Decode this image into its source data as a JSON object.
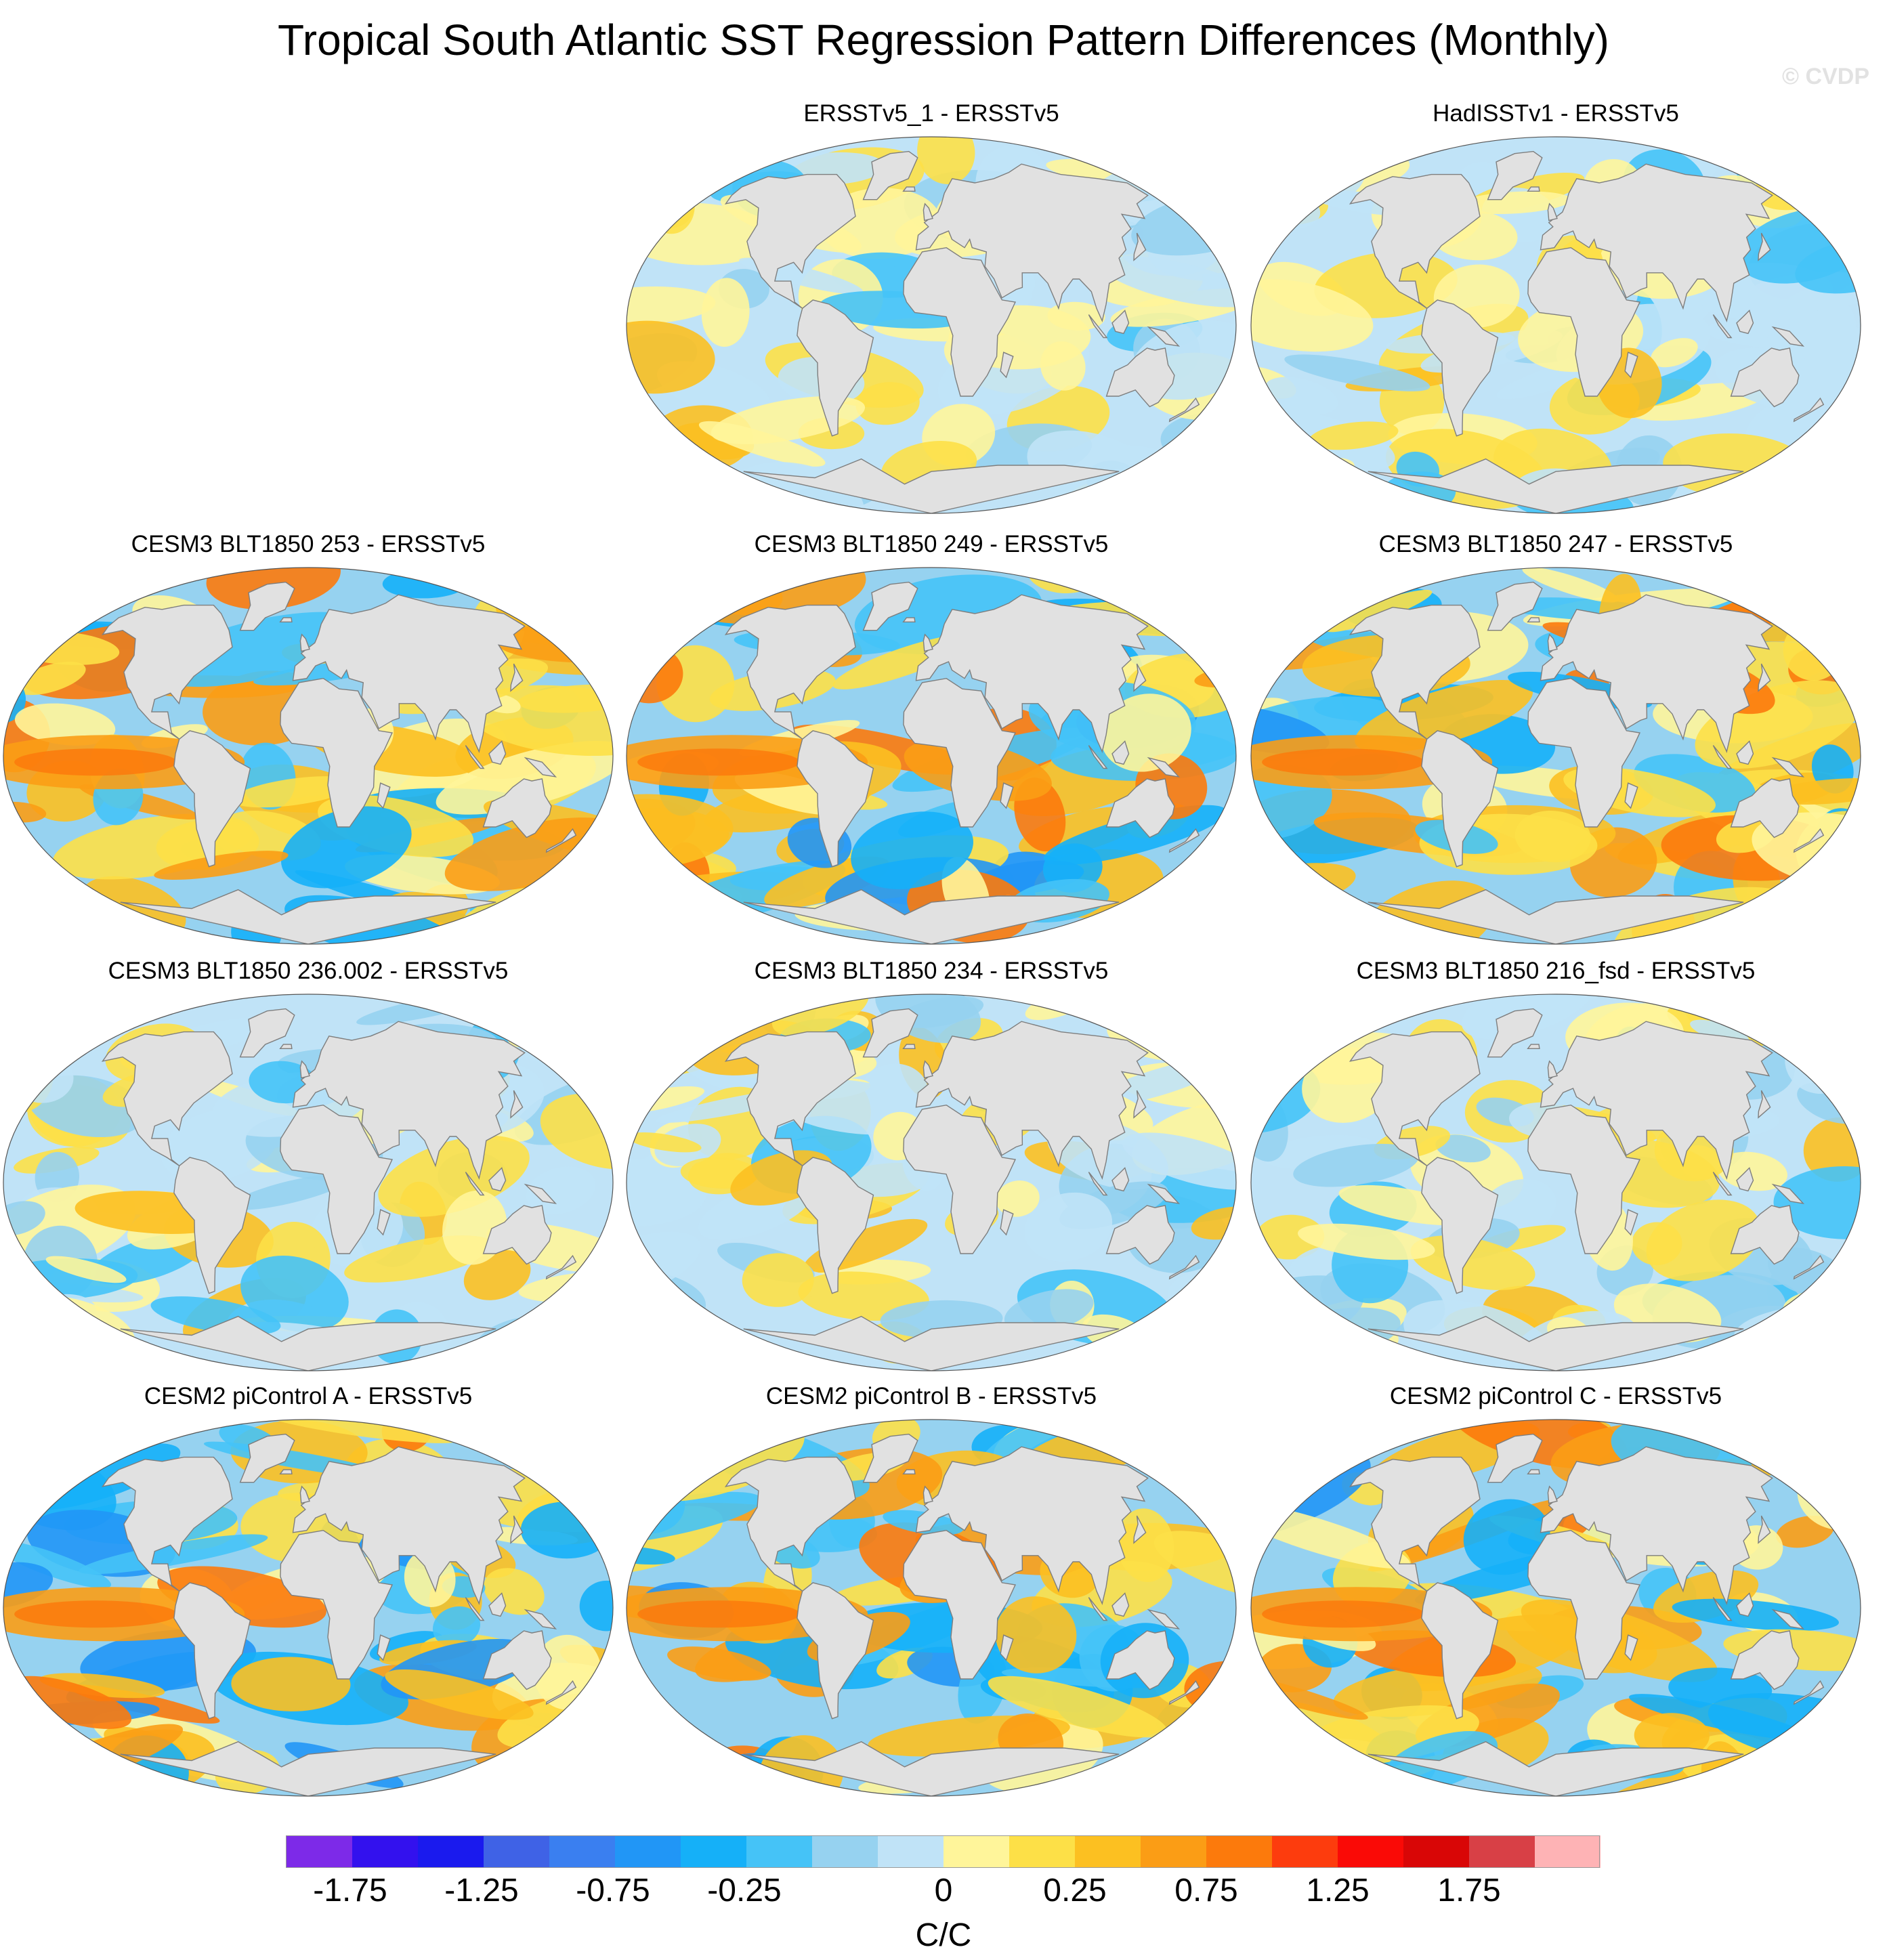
{
  "title": "Tropical South Atlantic SST Regression Pattern Differences (Monthly)",
  "watermark": "© CVDP",
  "panels": [
    {
      "title": "ERSSTv5_1 - ERSSTv5",
      "style": "light",
      "seed": 1
    },
    {
      "title": "HadISSTv1 - ERSSTv5",
      "style": "light",
      "seed": 2
    },
    {
      "title": "CESM3 BLT1850 253 - ERSSTv5",
      "style": "strong",
      "seed": 3
    },
    {
      "title": "CESM3 BLT1850 249 - ERSSTv5",
      "style": "strong",
      "seed": 4
    },
    {
      "title": "CESM3 BLT1850 247 - ERSSTv5",
      "style": "strong",
      "seed": 5
    },
    {
      "title": "CESM3 BLT1850 236.002 - ERSSTv5",
      "style": "moderate",
      "seed": 6
    },
    {
      "title": "CESM3 BLT1850 234 - ERSSTv5",
      "style": "moderate",
      "seed": 7
    },
    {
      "title": "CESM3 BLT1850 216_fsd - ERSSTv5",
      "style": "moderate",
      "seed": 8
    },
    {
      "title": "CESM2 piControl A - ERSSTv5",
      "style": "strong",
      "seed": 9
    },
    {
      "title": "CESM2 piControl B - ERSSTv5",
      "style": "strong",
      "seed": 10
    },
    {
      "title": "CESM2 piControl C - ERSSTv5",
      "style": "strong",
      "seed": 11
    }
  ],
  "colorbar": {
    "colors": [
      "#7d2ae8",
      "#3311ee",
      "#1a1aee",
      "#3f62e6",
      "#3a7ff0",
      "#2196f6",
      "#15b0f8",
      "#45c3f7",
      "#96d2f0",
      "#c0e3f7",
      "#fff59a",
      "#fde047",
      "#fcc021",
      "#fb9d15",
      "#fc7a0c",
      "#fd3c0d",
      "#fa0a06",
      "#d90606",
      "#d84046",
      "#feb3b5"
    ],
    "labels": [
      "-1.75",
      "-1.25",
      "-0.75",
      "-0.25",
      "0",
      "0.25",
      "0.75",
      "1.25",
      "1.75"
    ],
    "units": "C/C",
    "land_color": "#e1e1e1",
    "coast_color": "#7e7e7e"
  }
}
